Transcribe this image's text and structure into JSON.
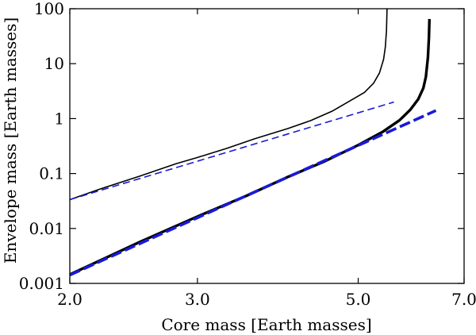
{
  "chart_data": {
    "type": "line",
    "title": "",
    "xlabel": "Core mass [Earth masses]",
    "ylabel": "Envelope mass [Earth masses]",
    "xscale": "log",
    "yscale": "log",
    "xlim": [
      2.0,
      7.0
    ],
    "ylim": [
      0.001,
      100
    ],
    "xticks": [
      {
        "value": 2.0,
        "label": "2.0"
      },
      {
        "value": 3.0,
        "label": "3.0"
      },
      {
        "value": 5.0,
        "label": "5.0"
      },
      {
        "value": 7.0,
        "label": "7.0"
      }
    ],
    "yticks": [
      {
        "value": 0.001,
        "label": "0.001"
      },
      {
        "value": 0.01,
        "label": "0.01"
      },
      {
        "value": 0.1,
        "label": "0.1"
      },
      {
        "value": 1,
        "label": "1"
      },
      {
        "value": 10,
        "label": "10"
      },
      {
        "value": 100,
        "label": "100"
      }
    ],
    "grid": false,
    "series": [
      {
        "name": "thin-black-solid",
        "color": "#000000",
        "style": "solid",
        "weight": "thin",
        "points": [
          [
            2.0,
            0.0335
          ],
          [
            2.2,
            0.052
          ],
          [
            2.5,
            0.09
          ],
          [
            2.8,
            0.15
          ],
          [
            3.0,
            0.196
          ],
          [
            3.3,
            0.29
          ],
          [
            3.6,
            0.43
          ],
          [
            4.0,
            0.66
          ],
          [
            4.3,
            0.92
          ],
          [
            4.6,
            1.36
          ],
          [
            4.9,
            2.2
          ],
          [
            5.1,
            3.0
          ],
          [
            5.25,
            4.4
          ],
          [
            5.35,
            6.8
          ],
          [
            5.42,
            12.0
          ],
          [
            5.45,
            20.0
          ],
          [
            5.47,
            40.0
          ],
          [
            5.48,
            100.0
          ]
        ]
      },
      {
        "name": "thin-blue-dashed",
        "color": "#1a1ad6",
        "style": "dashed",
        "weight": "thin",
        "points": [
          [
            2.0,
            0.0335
          ],
          [
            5.6,
            2.0
          ]
        ]
      },
      {
        "name": "thick-black-solid",
        "color": "#000000",
        "style": "solid",
        "weight": "thick",
        "points": [
          [
            2.0,
            0.00145
          ],
          [
            2.5,
            0.0057
          ],
          [
            3.0,
            0.0165
          ],
          [
            3.5,
            0.039
          ],
          [
            4.0,
            0.087
          ],
          [
            4.5,
            0.168
          ],
          [
            5.0,
            0.33
          ],
          [
            5.4,
            0.57
          ],
          [
            5.7,
            0.93
          ],
          [
            5.9,
            1.45
          ],
          [
            6.05,
            2.25
          ],
          [
            6.15,
            3.6
          ],
          [
            6.2,
            5.8
          ],
          [
            6.24,
            13.0
          ],
          [
            6.26,
            30.0
          ],
          [
            6.27,
            65.0
          ]
        ]
      },
      {
        "name": "thick-blue-dashed",
        "color": "#1a1ad6",
        "style": "dashed",
        "weight": "thick",
        "points": [
          [
            2.0,
            0.00142
          ],
          [
            6.4,
            1.4
          ]
        ]
      }
    ]
  }
}
